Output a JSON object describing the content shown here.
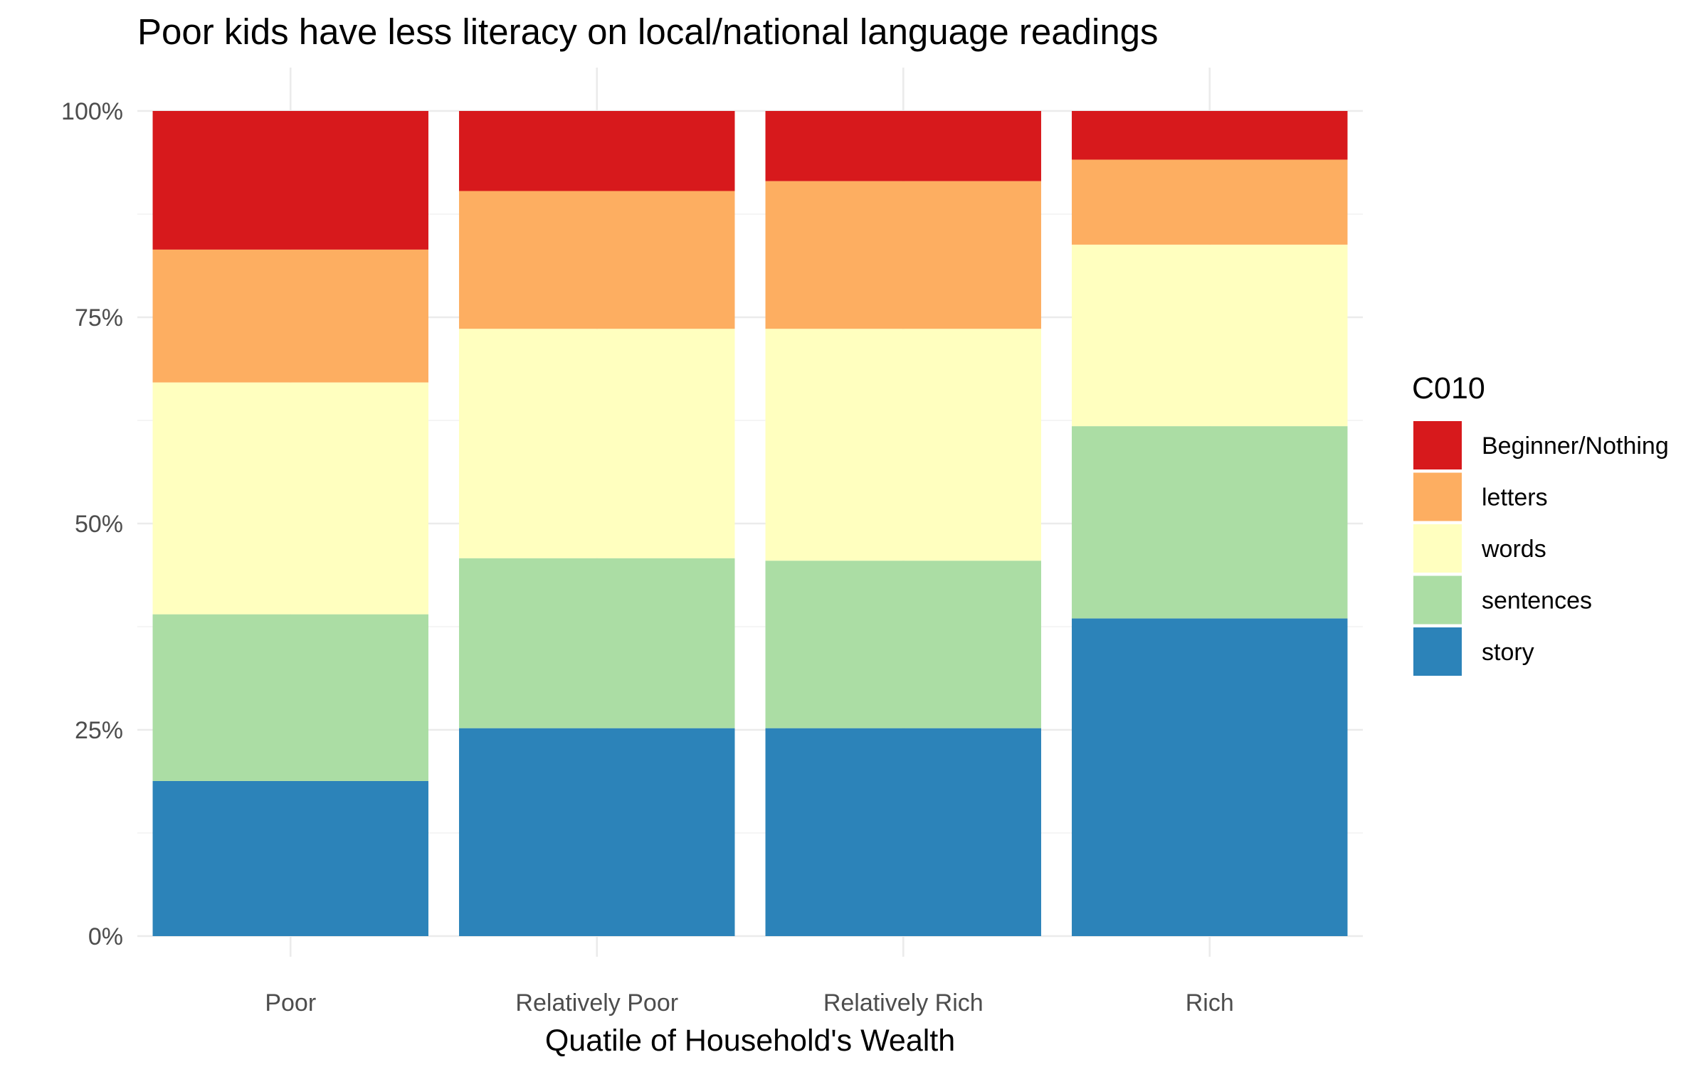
{
  "chart_data": {
    "type": "bar",
    "stacked": true,
    "percent": true,
    "title": "Poor kids have less literacy on local/national language readings",
    "xlabel": "Quatile of Household's Wealth",
    "ylabel": "",
    "ylim": [
      0,
      100
    ],
    "yticks": [
      "0%",
      "25%",
      "50%",
      "75%",
      "100%"
    ],
    "grid": true,
    "legend_position": "right",
    "legend_title": "C010",
    "categories": [
      "Poor",
      "Relatively Poor",
      "Relatively Rich",
      "Rich"
    ],
    "series": [
      {
        "name": "story",
        "color": "#2c83b9",
        "values": [
          18.8,
          25.2,
          25.2,
          38.5
        ]
      },
      {
        "name": "sentences",
        "color": "#abdda4",
        "values": [
          20.2,
          20.6,
          20.3,
          23.3
        ]
      },
      {
        "name": "words",
        "color": "#ffffbf",
        "values": [
          28.1,
          27.8,
          28.1,
          22.0
        ]
      },
      {
        "name": "letters",
        "color": "#fdae61",
        "values": [
          16.1,
          16.7,
          17.9,
          10.3
        ]
      },
      {
        "name": "Beginner/Nothing",
        "color": "#d7191c",
        "values": [
          16.8,
          9.7,
          8.5,
          5.9
        ]
      }
    ],
    "legend_order": [
      "Beginner/Nothing",
      "letters",
      "words",
      "sentences",
      "story"
    ]
  }
}
